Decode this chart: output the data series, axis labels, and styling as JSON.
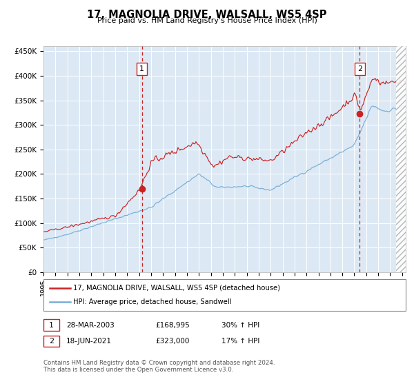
{
  "title": "17, MAGNOLIA DRIVE, WALSALL, WS5 4SP",
  "subtitle": "Price paid vs. HM Land Registry's House Price Index (HPI)",
  "plot_bg_color": "#dce9f5",
  "red_line_color": "#cc2222",
  "blue_line_color": "#7aadd4",
  "marker_color": "#cc2222",
  "dashed_line_color": "#cc2222",
  "grid_color": "#ffffff",
  "ylabel_ticks": [
    "£0",
    "£50K",
    "£100K",
    "£150K",
    "£200K",
    "£250K",
    "£300K",
    "£350K",
    "£400K",
    "£450K"
  ],
  "ylabel_values": [
    0,
    50000,
    100000,
    150000,
    200000,
    250000,
    300000,
    350000,
    400000,
    450000
  ],
  "ylim": [
    0,
    460000
  ],
  "xlim_start": 1995.0,
  "xlim_end": 2025.3,
  "hatch_start": 2024.5,
  "sale1_x": 2003.23,
  "sale1_y": 168995,
  "sale1_label": "1",
  "sale2_x": 2021.46,
  "sale2_y": 323000,
  "sale2_label": "2",
  "legend_line1": "17, MAGNOLIA DRIVE, WALSALL, WS5 4SP (detached house)",
  "legend_line2": "HPI: Average price, detached house, Sandwell",
  "table_row1": [
    "1",
    "28-MAR-2003",
    "£168,995",
    "30% ↑ HPI"
  ],
  "table_row2": [
    "2",
    "18-JUN-2021",
    "£323,000",
    "17% ↑ HPI"
  ],
  "footer": "Contains HM Land Registry data © Crown copyright and database right 2024.\nThis data is licensed under the Open Government Licence v3.0."
}
